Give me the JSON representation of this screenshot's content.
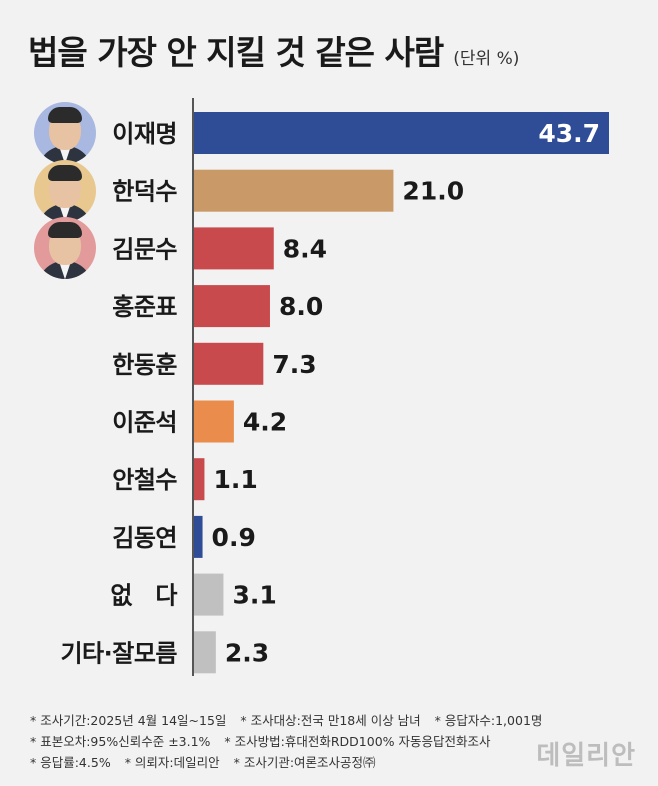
{
  "header": {
    "title": "법을 가장 안 지킬 것 같은 사람",
    "unit": "(단위 %)"
  },
  "chart_data": {
    "type": "bar",
    "orientation": "horizontal",
    "title": "법을 가장 안 지킬 것 같은 사람",
    "unit": "(단위 %)",
    "categories": [
      "이재명",
      "한덕수",
      "김문수",
      "홍준표",
      "한동훈",
      "이준석",
      "안철수",
      "김동연",
      "없　다",
      "기타·잘모름"
    ],
    "values": [
      43.7,
      21.0,
      8.4,
      8.0,
      7.3,
      4.2,
      1.1,
      0.9,
      3.1,
      2.3
    ],
    "value_labels": [
      "43.7",
      "21.0",
      "8.4",
      "8.0",
      "7.3",
      "4.2",
      "1.1",
      "0.9",
      "3.1",
      "2.3"
    ],
    "colors": [
      "#2f4d97",
      "#c99a68",
      "#c94a4c",
      "#c94a4c",
      "#c94a4c",
      "#e98c4c",
      "#c94a4c",
      "#2f4d97",
      "#c0c0c0",
      "#c0c0c0"
    ],
    "xlim": [
      0,
      43.7
    ],
    "grid": false,
    "legend": "none"
  },
  "avatars": [
    {
      "name": "이재명",
      "ring_color": "#a8b8e0"
    },
    {
      "name": "한덕수",
      "ring_color": "#e8c88e"
    },
    {
      "name": "김문수",
      "ring_color": "#e39a9a"
    }
  ],
  "footnotes": {
    "row1": [
      "* 조사기간:2025년 4월 14일~15일",
      "* 조사대상:전국 만18세 이상 남녀",
      "* 응답자수:1,001명"
    ],
    "row2": [
      "* 표본오차:95%신뢰수준 ±3.1%",
      "* 조사방법:휴대전화RDD100% 자동응답전화조사"
    ],
    "row3": [
      "* 응답률:4.5%",
      "* 의뢰자:데일리안",
      "* 조사기관:여론조사공정㈜"
    ]
  },
  "logo": "데일리안"
}
